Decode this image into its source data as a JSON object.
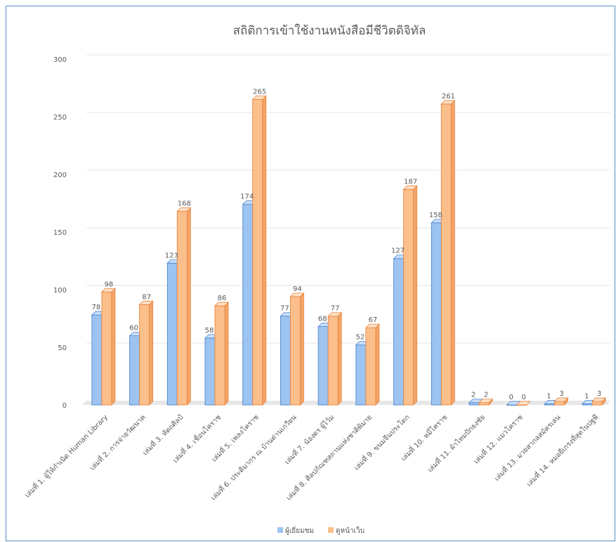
{
  "chart_data": {
    "type": "bar",
    "title": "สถิติการเข้าใช้งานหนังสือมีชีวิตดิจิทัล",
    "categories": [
      "เล่มที่ 1. ผู้ให้กำเนิด Human Library",
      "เล่มที่ 2. การจ่ายวัฒนาค",
      "เล่มที่ 3. หัตถศิลป์",
      "เล่มที่ 4. เชื่อนโคราช",
      "เล่มที่ 5. เพลงโคราช",
      "เล่มที่ 6. ประติมากร ณ บ้านด่านเกวียน",
      "เล่มที่ 7. น้องดร ผู้ไว้ม",
      "เล่มที่ 8. ศิลปกัณฑสถานแห่งชาติพิมาย",
      "เล่มที่ 9. ขนมจีนประโดก",
      "เล่มที่ 10. หมี่โคราช",
      "เล่มที่ 11. ผ้าไหมปักธงชัย",
      "เล่มที่ 12. แมวโคราช",
      "เล่มที่ 13. มวยสากลสมัครเล่น",
      "เล่มที่ 14. หมอยีเกรงที่สุดในปฐพี"
    ],
    "series": [
      {
        "name": "ผู้เยี่ยมชม",
        "color": "#9dc3f0",
        "values": [
          78,
          60,
          123,
          58,
          174,
          77,
          68,
          52,
          127,
          158,
          2,
          0,
          1,
          1
        ]
      },
      {
        "name": "ดูหน้าเว็บ",
        "color": "#fbbf8c",
        "values": [
          98,
          87,
          168,
          86,
          265,
          94,
          77,
          67,
          187,
          261,
          2,
          0,
          3,
          3
        ]
      }
    ],
    "yticks": [
      "0",
      "50",
      "100",
      "150",
      "200",
      "250",
      "300"
    ],
    "ylim": [
      0,
      300
    ],
    "xlabel": "",
    "ylabel": "",
    "grid": true,
    "legend_position": "bottom",
    "style": "3d-clustered-column"
  }
}
